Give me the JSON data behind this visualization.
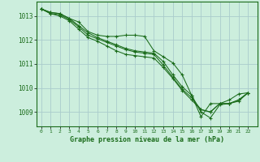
{
  "bg_color": "#cceedd",
  "grid_color": "#aacccc",
  "line_color": "#1a6b1a",
  "marker_color": "#1a6b1a",
  "title": "Graphe pression niveau de la mer (hPa)",
  "ylabel_ticks": [
    1009,
    1010,
    1011,
    1012,
    1013
  ],
  "xlim": [
    -0.5,
    23
  ],
  "ylim": [
    1008.4,
    1013.6
  ],
  "series": [
    [
      1013.3,
      1013.15,
      1013.1,
      1012.9,
      1012.75,
      1012.35,
      1012.2,
      1012.15,
      1012.15,
      1012.2,
      1012.2,
      1012.15,
      1011.55,
      1011.3,
      1011.05,
      1010.55,
      1009.7,
      1008.8,
      1009.35,
      1009.35,
      1009.5,
      1009.75,
      1009.8
    ],
    [
      1013.3,
      1013.15,
      1013.1,
      1012.9,
      1012.6,
      1012.3,
      1012.1,
      1011.95,
      1011.8,
      1011.65,
      1011.55,
      1011.5,
      1011.45,
      1011.1,
      1010.55,
      1010.05,
      1009.7,
      1009.0,
      1008.75,
      1009.3,
      1009.35,
      1009.45,
      1009.8
    ],
    [
      1013.3,
      1013.1,
      1013.05,
      1012.85,
      1012.55,
      1012.2,
      1012.05,
      1011.9,
      1011.75,
      1011.6,
      1011.5,
      1011.45,
      1011.4,
      1010.95,
      1010.45,
      1009.95,
      1009.6,
      1009.1,
      1009.0,
      1009.35,
      1009.35,
      1009.5,
      1009.8
    ],
    [
      1013.3,
      1013.1,
      1013.0,
      1012.8,
      1012.45,
      1012.1,
      1011.95,
      1011.75,
      1011.55,
      1011.4,
      1011.35,
      1011.3,
      1011.25,
      1010.85,
      1010.4,
      1009.9,
      1009.5,
      1009.1,
      1009.0,
      1009.35,
      1009.35,
      1009.5,
      1009.8
    ]
  ]
}
